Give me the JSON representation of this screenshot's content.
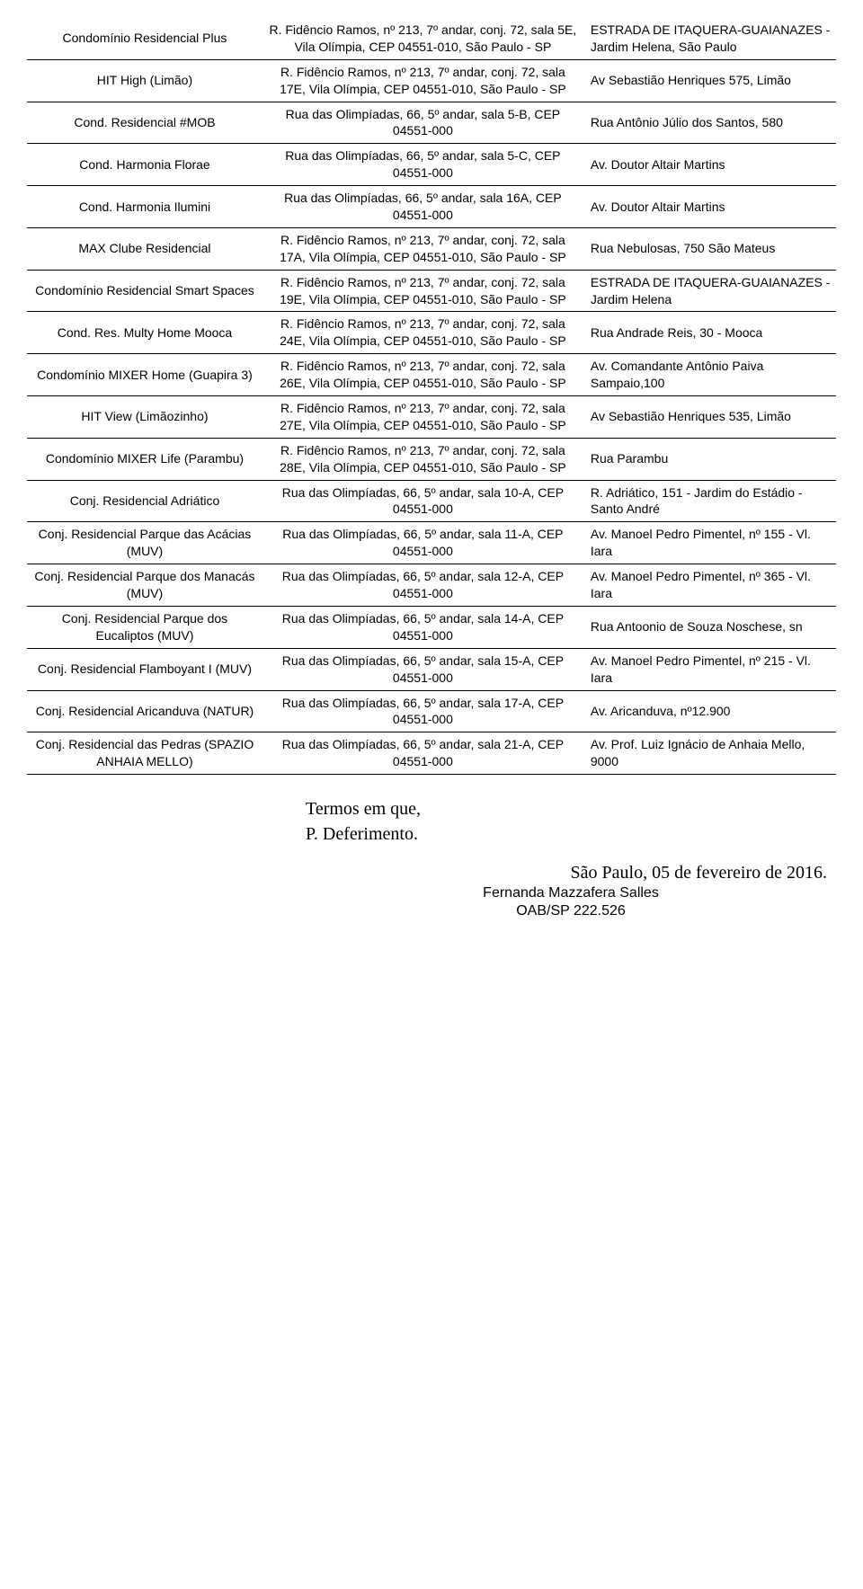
{
  "rows": [
    {
      "c1": "Condomínio Residencial Plus",
      "c2": "R. Fidêncio Ramos, nº 213, 7º andar, conj. 72, sala 5E, Vila Olímpia, CEP 04551-010, São Paulo - SP",
      "c3": "ESTRADA DE ITAQUERA-GUAIANAZES - Jardim Helena, São Paulo"
    },
    {
      "c1": "HIT High (Limão)",
      "c2": "R. Fidêncio Ramos, nº 213, 7º andar, conj. 72, sala 17E, Vila Olímpia, CEP 04551-010, São Paulo - SP",
      "c3": "Av Sebastião Henriques 575, Limão"
    },
    {
      "c1": "Cond. Residencial #MOB",
      "c2": "Rua das Olimpíadas, 66, 5º andar, sala 5-B, CEP 04551-000",
      "c3": "Rua Antônio Júlio dos Santos, 580"
    },
    {
      "c1": "Cond. Harmonia Florae",
      "c2": "Rua das Olimpíadas, 66, 5º andar, sala 5-C, CEP 04551-000",
      "c3": "Av. Doutor Altair Martins"
    },
    {
      "c1": "Cond. Harmonia Ilumini",
      "c2": "Rua das Olimpíadas, 66, 5º andar, sala 16A, CEP 04551-000",
      "c3": "Av. Doutor Altair Martins"
    },
    {
      "c1": "MAX Clube Residencial",
      "c2": "R. Fidêncio Ramos, nº 213, 7º andar, conj. 72, sala 17A, Vila Olímpia, CEP 04551-010, São Paulo - SP",
      "c3": "Rua Nebulosas, 750 São Mateus"
    },
    {
      "c1": "Condomínio Residencial Smart Spaces",
      "c2": "R. Fidêncio Ramos, nº 213, 7º andar, conj. 72, sala 19E, Vila Olímpia, CEP 04551-010, São Paulo - SP",
      "c3": "ESTRADA DE ITAQUERA-GUAIANAZES - Jardim Helena"
    },
    {
      "c1": "Cond. Res. Multy Home Mooca",
      "c2": "R. Fidêncio Ramos, nº 213, 7º andar, conj. 72, sala 24E, Vila Olímpia, CEP 04551-010, São Paulo - SP",
      "c3": "Rua Andrade Reis, 30 - Mooca"
    },
    {
      "c1": "Condomínio MIXER Home (Guapira 3)",
      "c2": "R. Fidêncio Ramos, nº 213, 7º andar, conj. 72, sala 26E, Vila Olímpia, CEP 04551-010, São Paulo - SP",
      "c3": "Av. Comandante Antônio Paiva Sampaio,100"
    },
    {
      "c1": "HIT View (Limãozinho)",
      "c2": "R. Fidêncio Ramos, nº 213, 7º andar, conj. 72, sala 27E, Vila Olímpia, CEP 04551-010, São Paulo - SP",
      "c3": "Av Sebastião Henriques 535, Limão"
    },
    {
      "c1": "Condomínio MIXER Life (Parambu)",
      "c2": "R. Fidêncio Ramos, nº 213, 7º andar, conj. 72, sala 28E, Vila Olímpia, CEP 04551-010, São Paulo - SP",
      "c3": "Rua Parambu"
    },
    {
      "c1": "Conj. Residencial Adriático",
      "c2": "Rua das Olimpíadas, 66, 5º andar, sala 10-A, CEP 04551-000",
      "c3": "R. Adriático, 151 - Jardim do Estádio - Santo André"
    },
    {
      "c1": "Conj. Residencial Parque das Acácias (MUV)",
      "c2": "Rua das Olimpíadas, 66, 5º andar, sala 11-A, CEP 04551-000",
      "c3": "Av. Manoel Pedro Pimentel, nº 155 - Vl. Iara"
    },
    {
      "c1": "Conj. Residencial Parque dos Manacás (MUV)",
      "c2": "Rua das Olimpíadas, 66, 5º andar, sala 12-A, CEP 04551-000",
      "c3": "Av. Manoel Pedro Pimentel, nº 365 - Vl. Iara"
    },
    {
      "c1": "Conj. Residencial Parque dos Eucaliptos (MUV)",
      "c2": "Rua das Olimpíadas, 66, 5º andar, sala 14-A, CEP 04551-000",
      "c3": "Rua Antoonio de Souza Noschese, sn"
    },
    {
      "c1": "Conj. Residencial Flamboyant I (MUV)",
      "c2": "Rua das Olimpíadas, 66, 5º andar, sala 15-A, CEP 04551-000",
      "c3": "Av. Manoel Pedro Pimentel, nº 215 - Vl. Iara"
    },
    {
      "c1": "Conj. Residencial Aricanduva (NATUR)",
      "c2": "Rua das Olimpíadas, 66, 5º andar, sala 17-A, CEP 04551-000",
      "c3": "Av. Aricanduva, nº12.900"
    },
    {
      "c1": "Conj. Residencial das Pedras (SPAZIO ANHAIA MELLO)",
      "c2": "Rua das Olimpíadas, 66, 5º andar, sala 21-A, CEP 04551-000",
      "c3": "Av. Prof. Luiz Ignácio de Anhaia Mello, 9000"
    }
  ],
  "footer": {
    "closing1": "Termos em que,",
    "closing2": "P. Deferimento.",
    "date": "São Paulo, 05 de fevereiro de 2016.",
    "sig1": "Fernanda Mazzafera Salles",
    "sig2": "OAB/SP 222.526"
  }
}
